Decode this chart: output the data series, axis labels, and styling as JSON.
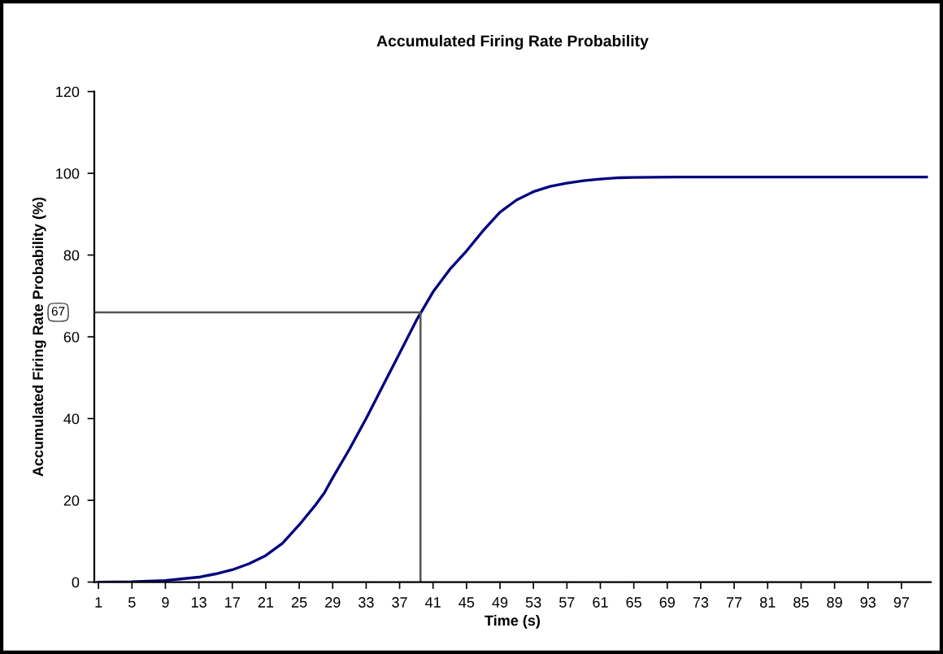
{
  "chart_data": {
    "type": "line",
    "title": "Accumulated Firing Rate Probability",
    "xlabel": "Time (s)",
    "ylabel": "Accumulated Firing Rate Probability (%)",
    "series": [
      {
        "color": "#000080",
        "x": [
          1,
          5,
          9,
          13,
          15,
          17,
          19,
          21,
          23,
          25,
          27,
          28,
          29,
          31,
          33,
          35,
          37,
          39,
          41,
          43,
          45,
          47,
          49,
          51,
          53,
          55,
          57,
          59,
          61,
          63,
          65,
          70,
          80,
          90,
          100
        ],
        "values": [
          0,
          0.1,
          0.4,
          1.2,
          2,
          3,
          4.5,
          6.5,
          9.5,
          14,
          19,
          21.8,
          25.5,
          32.5,
          40,
          48,
          56,
          64,
          71,
          76.5,
          81,
          86,
          90.5,
          93.5,
          95.5,
          96.8,
          97.6,
          98.2,
          98.6,
          98.9,
          99,
          99.1,
          99.1,
          99.1,
          99.1
        ]
      },
      {
        "type": "line",
        "color": "#555555",
        "x": [
          0.5,
          39.5,
          39.5
        ],
        "values": [
          66,
          66,
          0
        ]
      }
    ],
    "annotations": [
      {
        "text": "67",
        "x": 0.5,
        "y": 66
      }
    ],
    "xlim": [
      0.5,
      100.5
    ],
    "xticks": [
      1,
      5,
      9,
      13,
      17,
      21,
      25,
      29,
      33,
      37,
      41,
      45,
      49,
      53,
      57,
      61,
      65,
      69,
      73,
      77,
      81,
      85,
      89,
      93,
      97
    ],
    "ylim": [
      0,
      120
    ],
    "yticks": [
      0,
      20,
      40,
      60,
      80,
      100,
      120
    ],
    "grid": false,
    "marker": "none",
    "line_style": "solid"
  }
}
